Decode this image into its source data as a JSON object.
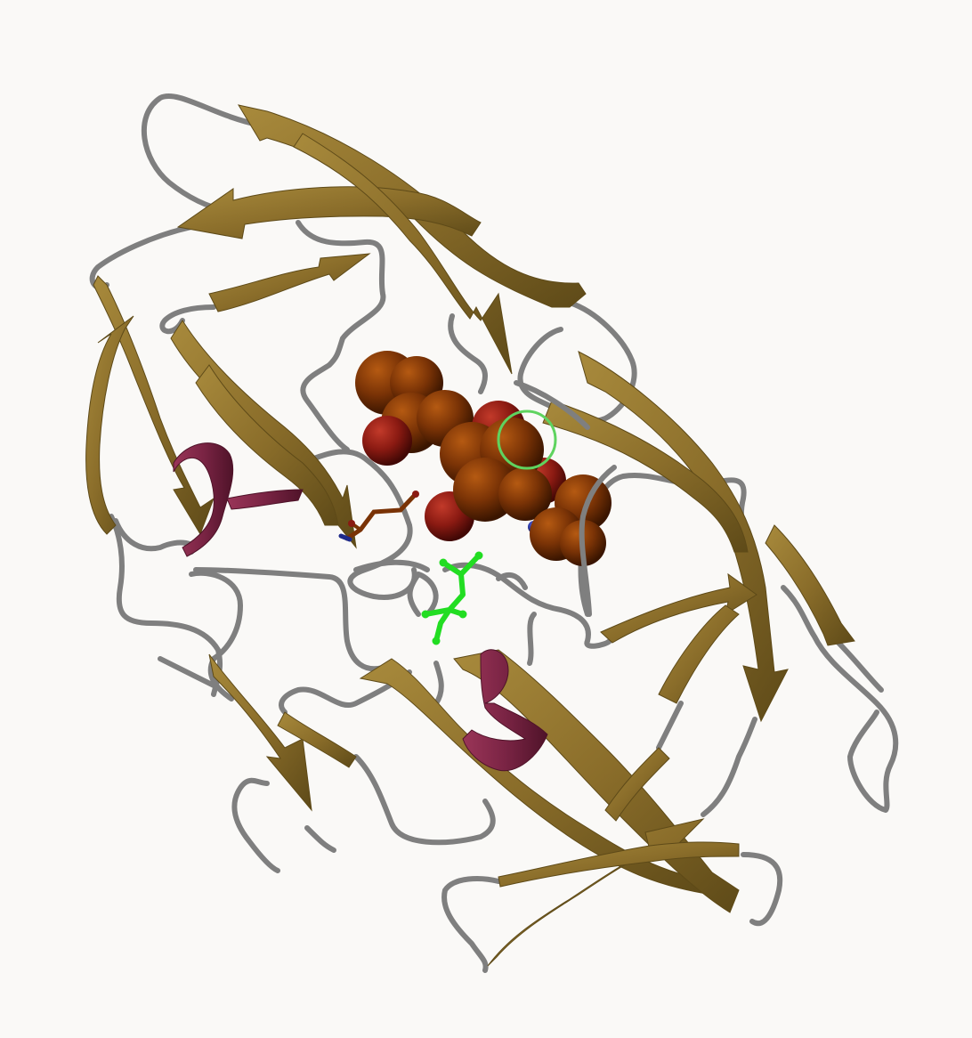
{
  "scene": {
    "subject": "protein-ribbon-structure",
    "background_color": "#faf9f7",
    "colors": {
      "beta_strand": "#8a6d2a",
      "beta_strand_dark": "#5e4a18",
      "beta_strand_light": "#a88a3c",
      "helix": "#7a2444",
      "helix_dark": "#4f1329",
      "coil": "#7f7f7f",
      "ligand_carbon": "#7a3306",
      "ligand_oxygen": "#8a1a12",
      "ligand_nitrogen": "#1e2a8a",
      "residue_highlight": "#22dd22",
      "selection_ring": "#5fd35f"
    }
  }
}
